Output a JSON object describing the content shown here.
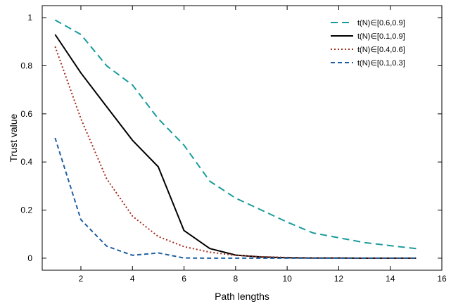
{
  "chart_data": {
    "type": "line",
    "title": "",
    "xlabel": "Path lengths",
    "ylabel": "Trust value",
    "xlim": [
      0.5,
      16
    ],
    "ylim": [
      -0.05,
      1.05
    ],
    "xticks": [
      2,
      4,
      6,
      8,
      10,
      12,
      14,
      16
    ],
    "xtick_labels": [
      "2",
      "4",
      "6",
      "8",
      "10",
      "12",
      "14",
      "16"
    ],
    "yticks": [
      0,
      0.2,
      0.4,
      0.6,
      0.8,
      1
    ],
    "ytick_labels": [
      "0",
      "0.2",
      "0.4",
      "0.6",
      "0.8",
      "1"
    ],
    "grid": false,
    "legend_position": "top-right",
    "series": [
      {
        "name": "t(N)∈[0.6,0.9]",
        "color": "#1a9b9b",
        "line_style": "long-dash",
        "x": [
          1,
          2,
          3,
          4,
          5,
          6,
          7,
          8,
          9,
          10,
          11,
          12,
          13,
          14,
          15
        ],
        "y": [
          0.99,
          0.93,
          0.8,
          0.72,
          0.58,
          0.47,
          0.32,
          0.25,
          0.2,
          0.15,
          0.105,
          0.085,
          0.065,
          0.052,
          0.04
        ]
      },
      {
        "name": "t(N)∈[0.1,0.9]",
        "color": "#000000",
        "line_style": "solid",
        "x": [
          1,
          2,
          3,
          4,
          5,
          6,
          7,
          8,
          9,
          10,
          11,
          12,
          13,
          14,
          15
        ],
        "y": [
          0.93,
          0.77,
          0.63,
          0.49,
          0.38,
          0.115,
          0.04,
          0.013,
          0.005,
          0.002,
          0.001,
          0.001,
          0.0,
          0.0,
          0.0
        ]
      },
      {
        "name": "t(N)∈[0.4,0.6]",
        "color": "#a52a1a",
        "line_style": "dotted",
        "x": [
          1,
          2,
          3,
          4,
          5,
          6,
          7,
          8,
          9,
          10,
          11,
          12,
          13,
          14,
          15
        ],
        "y": [
          0.88,
          0.58,
          0.33,
          0.175,
          0.09,
          0.048,
          0.025,
          0.012,
          0.006,
          0.003,
          0.001,
          0.001,
          0.0,
          0.0,
          0.0
        ]
      },
      {
        "name": "t(N)∈[0.1,0.3]",
        "color": "#1f5fa0",
        "line_style": "dashed",
        "x": [
          1,
          2,
          3,
          4,
          5,
          6,
          7,
          8,
          9,
          10,
          11,
          12,
          13,
          14,
          15
        ],
        "y": [
          0.5,
          0.16,
          0.05,
          0.012,
          0.022,
          0.001,
          0.0,
          0.0,
          0.0,
          0.0,
          0.0,
          0.0,
          0.0,
          0.0,
          0.0
        ]
      }
    ]
  }
}
